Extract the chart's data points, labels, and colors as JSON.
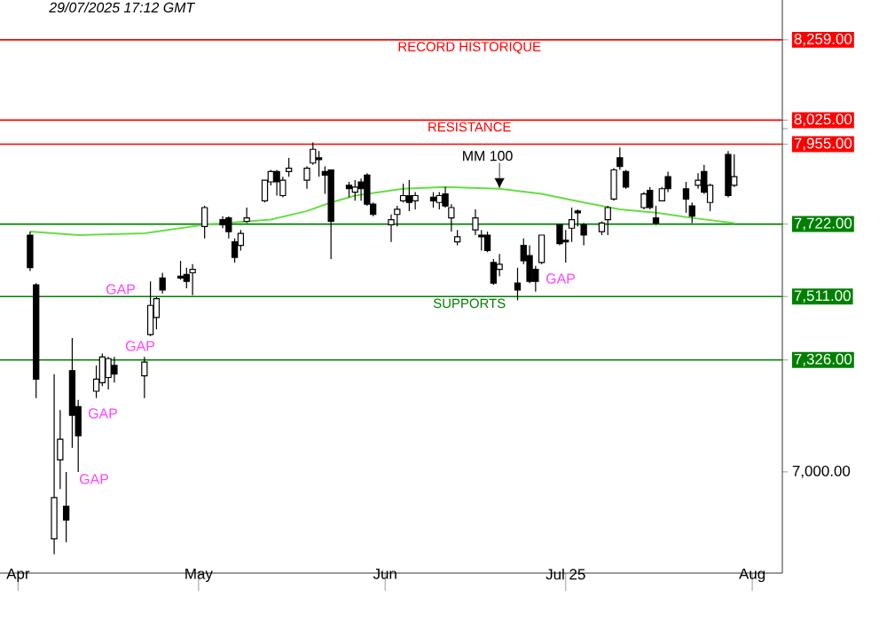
{
  "chart_data": {
    "type": "candlestick",
    "x": [
      "2025-04-03",
      "2025-04-04",
      "2025-04-07",
      "2025-04-08",
      "2025-04-09",
      "2025-04-10",
      "2025-04-11",
      "2025-04-14",
      "2025-04-15",
      "2025-04-16",
      "2025-04-17",
      "2025-04-22",
      "2025-04-23",
      "2025-04-24",
      "2025-04-25",
      "2025-04-28",
      "2025-04-29",
      "2025-04-30",
      "2025-05-02",
      "2025-05-05",
      "2025-05-06",
      "2025-05-07",
      "2025-05-08",
      "2025-05-09",
      "2025-05-12",
      "2025-05-13",
      "2025-05-14",
      "2025-05-15",
      "2025-05-16",
      "2025-05-19",
      "2025-05-20",
      "2025-05-21",
      "2025-05-22",
      "2025-05-23",
      "2025-05-26",
      "2025-05-27",
      "2025-05-28",
      "2025-05-29",
      "2025-05-30",
      "2025-06-02",
      "2025-06-03",
      "2025-06-04",
      "2025-06-05",
      "2025-06-06",
      "2025-06-09",
      "2025-06-10",
      "2025-06-11",
      "2025-06-12",
      "2025-06-13",
      "2025-06-16",
      "2025-06-17",
      "2025-06-18",
      "2025-06-19",
      "2025-06-20",
      "2025-06-23",
      "2025-06-24",
      "2025-06-25",
      "2025-06-26",
      "2025-06-27",
      "2025-06-30",
      "2025-07-01",
      "2025-07-02",
      "2025-07-03",
      "2025-07-04",
      "2025-07-07",
      "2025-07-08",
      "2025-07-09",
      "2025-07-10",
      "2025-07-11",
      "2025-07-14",
      "2025-07-15",
      "2025-07-16",
      "2025-07-17",
      "2025-07-18",
      "2025-07-21",
      "2025-07-22",
      "2025-07-23",
      "2025-07-24",
      "2025-07-25",
      "2025-07-28",
      "2025-07-29"
    ],
    "ohlc": [
      [
        7690,
        7700,
        7585,
        7595
      ],
      [
        7545,
        7550,
        7215,
        7270
      ],
      [
        6805,
        7285,
        6760,
        6925
      ],
      [
        7035,
        7180,
        6950,
        7095
      ],
      [
        6900,
        7000,
        6795,
        6860
      ],
      [
        7295,
        7390,
        7070,
        7165
      ],
      [
        7190,
        7210,
        7000,
        7105
      ],
      [
        7235,
        7310,
        7215,
        7270
      ],
      [
        7260,
        7345,
        7250,
        7335
      ],
      [
        7275,
        7335,
        7240,
        7330
      ],
      [
        7310,
        7335,
        7260,
        7285
      ],
      [
        7280,
        7335,
        7215,
        7320
      ],
      [
        7400,
        7555,
        7395,
        7485
      ],
      [
        7450,
        7510,
        7415,
        7505
      ],
      [
        7565,
        7580,
        7520,
        7530
      ],
      [
        7570,
        7615,
        7560,
        7565
      ],
      [
        7575,
        7595,
        7535,
        7555
      ],
      [
        7580,
        7605,
        7515,
        7590
      ],
      [
        7715,
        7775,
        7680,
        7770
      ],
      [
        7735,
        7745,
        7710,
        7720
      ],
      [
        7740,
        7745,
        7680,
        7700
      ],
      [
        7670,
        7680,
        7610,
        7625
      ],
      [
        7660,
        7705,
        7645,
        7695
      ],
      [
        7730,
        7770,
        7725,
        7740
      ],
      [
        7790,
        7850,
        7785,
        7850
      ],
      [
        7845,
        7880,
        7835,
        7875
      ],
      [
        7875,
        7880,
        7805,
        7845
      ],
      [
        7805,
        7860,
        7800,
        7850
      ],
      [
        7875,
        7915,
        7860,
        7885
      ],
      [
        7850,
        7890,
        7825,
        7885
      ],
      [
        7900,
        7960,
        7895,
        7940
      ],
      [
        7915,
        7935,
        7860,
        7910
      ],
      [
        7875,
        7890,
        7810,
        7865
      ],
      [
        7880,
        7880,
        7620,
        7730
      ],
      [
        7835,
        7845,
        7800,
        7825
      ],
      [
        7815,
        7850,
        7790,
        7830
      ],
      [
        7845,
        7855,
        7790,
        7825
      ],
      [
        7865,
        7870,
        7775,
        7780
      ],
      [
        7780,
        7785,
        7745,
        7750
      ],
      [
        7720,
        7750,
        7670,
        7735
      ],
      [
        7750,
        7775,
        7715,
        7765
      ],
      [
        7790,
        7840,
        7785,
        7805
      ],
      [
        7805,
        7850,
        7760,
        7785
      ],
      [
        7790,
        7815,
        7765,
        7805
      ],
      [
        7800,
        7815,
        7770,
        7790
      ],
      [
        7785,
        7815,
        7765,
        7805
      ],
      [
        7810,
        7830,
        7770,
        7775
      ],
      [
        7740,
        7780,
        7700,
        7770
      ],
      [
        7670,
        7705,
        7660,
        7685
      ],
      [
        7705,
        7765,
        7690,
        7740
      ],
      [
        7690,
        7705,
        7645,
        7685
      ],
      [
        7690,
        7700,
        7640,
        7645
      ],
      [
        7610,
        7620,
        7545,
        7550
      ],
      [
        7590,
        7635,
        7570,
        7605
      ],
      [
        7550,
        7595,
        7500,
        7530
      ],
      [
        7660,
        7680,
        7605,
        7615
      ],
      [
        7630,
        7660,
        7550,
        7555
      ],
      [
        7590,
        7600,
        7525,
        7555
      ],
      [
        7610,
        7690,
        7605,
        7690
      ],
      [
        7720,
        7720,
        7660,
        7665
      ],
      [
        7675,
        7705,
        7610,
        7670
      ],
      [
        7710,
        7770,
        7670,
        7735
      ],
      [
        7760,
        7765,
        7715,
        7755
      ],
      [
        7720,
        7725,
        7660,
        7690
      ],
      [
        7700,
        7730,
        7690,
        7725
      ],
      [
        7735,
        7775,
        7690,
        7770
      ],
      [
        7795,
        7885,
        7790,
        7880
      ],
      [
        7915,
        7945,
        7880,
        7890
      ],
      [
        7875,
        7880,
        7825,
        7830
      ],
      [
        7770,
        7815,
        7765,
        7810
      ],
      [
        7820,
        7830,
        7765,
        7770
      ],
      [
        7740,
        7775,
        7720,
        7725
      ],
      [
        7790,
        7830,
        7790,
        7825
      ],
      [
        7860,
        7875,
        7815,
        7825
      ],
      [
        7825,
        7845,
        7755,
        7795
      ],
      [
        7775,
        7785,
        7725,
        7745
      ],
      [
        7835,
        7870,
        7825,
        7850
      ],
      [
        7875,
        7895,
        7810,
        7815
      ],
      [
        7785,
        7840,
        7760,
        7835
      ],
      [
        7925,
        7935,
        7800,
        7805
      ],
      [
        7835,
        7925,
        7830,
        7860
      ]
    ],
    "series": [
      {
        "type": "line",
        "name": "MM 100",
        "color": "#66dd44",
        "x": [
          "2025-04-03",
          "2025-04-11",
          "2025-04-22",
          "2025-05-02",
          "2025-05-13",
          "2025-05-19",
          "2025-05-23",
          "2025-05-27",
          "2025-06-04",
          "2025-06-11",
          "2025-06-20",
          "2025-06-27",
          "2025-07-04",
          "2025-07-10",
          "2025-07-16",
          "2025-07-22",
          "2025-07-29"
        ],
        "values": [
          7700,
          7690,
          7695,
          7720,
          7735,
          7760,
          7785,
          7805,
          7825,
          7830,
          7825,
          7810,
          7785,
          7765,
          7755,
          7740,
          7725
        ]
      }
    ],
    "xlim": [
      "2025-03-29",
      "2025-08-06"
    ],
    "xticks": [
      {
        "value": "2025-04-01",
        "label": "Apr"
      },
      {
        "value": "2025-05-01",
        "label": "May"
      },
      {
        "value": "2025-06-01",
        "label": "Jun"
      },
      {
        "value": "2025-07-01",
        "label": "Jul 25"
      },
      {
        "value": "2025-08-01",
        "label": "Aug"
      }
    ],
    "ylim": [
      6705,
      8375
    ],
    "yticks": [
      {
        "value": 7000,
        "label": "7,000.00"
      },
      {
        "value": 7326,
        "label": "7,326.00"
      },
      {
        "value": 7511,
        "label": "7,511.00"
      },
      {
        "value": 7722,
        "label": "7,722.00"
      },
      {
        "value": 7955,
        "label": "7,955.00"
      },
      {
        "value": 8000,
        "label": null
      },
      {
        "value": 8025,
        "label": "8,025.00"
      },
      {
        "value": 8259,
        "label": "8,259.00"
      }
    ],
    "ref_lines": [
      {
        "axis": "y",
        "value": 8259,
        "label": "RECORD HISTORIQUE",
        "color": "#ff0000"
      },
      {
        "axis": "y",
        "value": 8025,
        "label": "RESISTANCE",
        "color": "#ff0000"
      },
      {
        "axis": "y",
        "value": 7955,
        "label": null,
        "color": "#ff0000"
      },
      {
        "axis": "y",
        "value": 7722,
        "label": null,
        "color": "#008000"
      },
      {
        "axis": "y",
        "value": 7511,
        "label": "SUPPORTS",
        "color": "#008000"
      },
      {
        "axis": "y",
        "value": 7326,
        "label": null,
        "color": "#008000"
      }
    ],
    "annotations": [
      "29/07/2025  17:12 GMT",
      "GAP",
      "GAP",
      "GAP",
      "GAP",
      "GAP"
    ]
  }
}
